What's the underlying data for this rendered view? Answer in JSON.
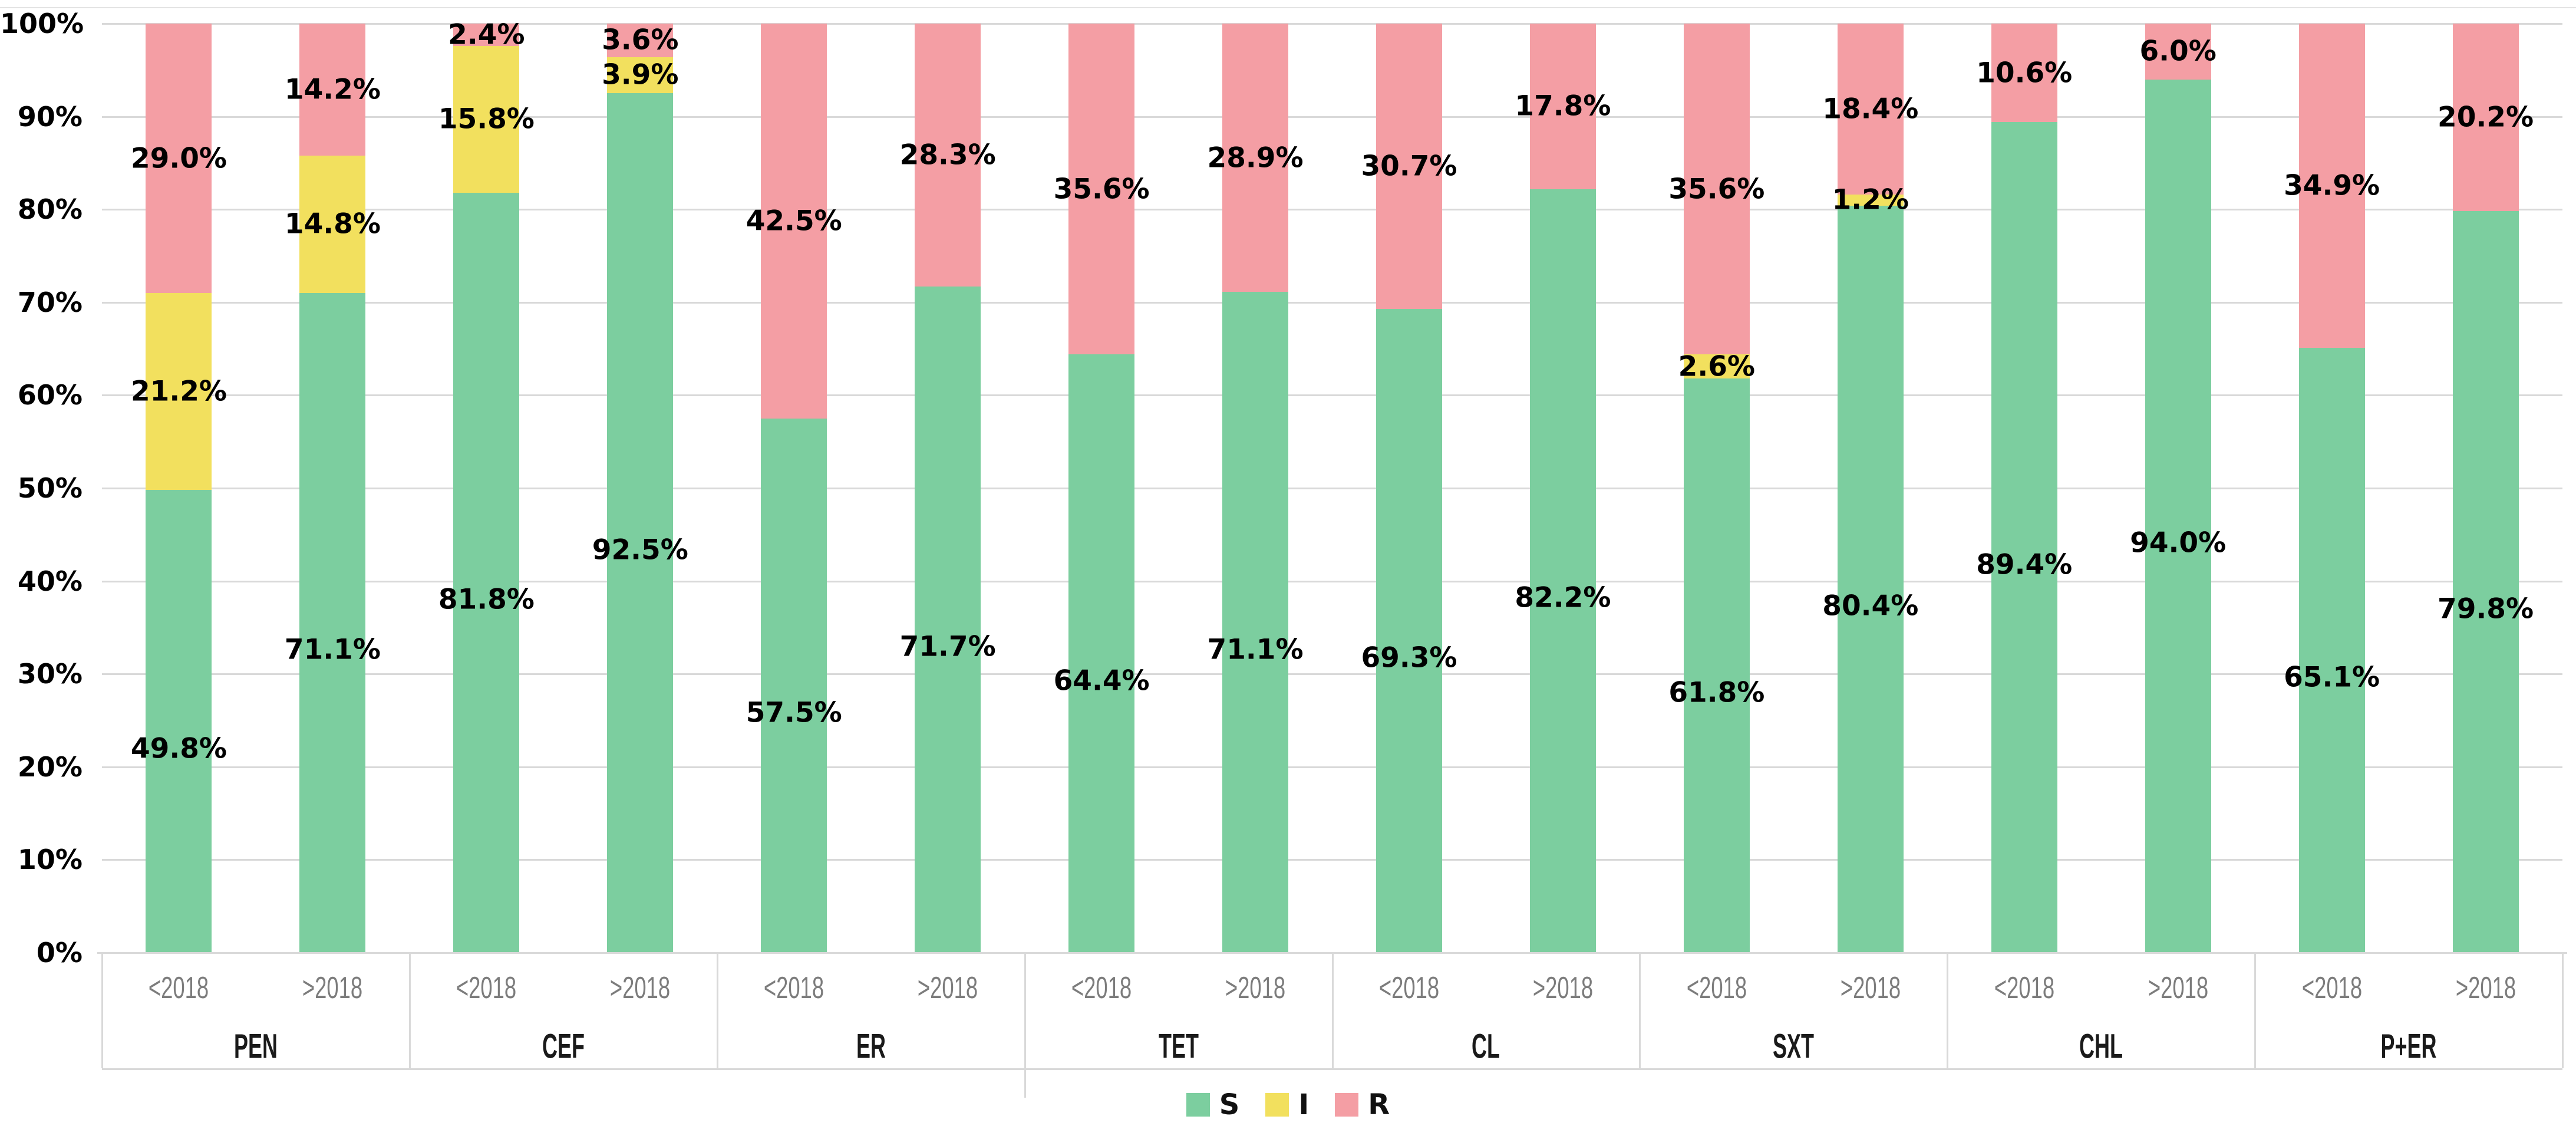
{
  "chart_data": {
    "type": "bar",
    "variant": "100-percent-stacked-column",
    "title": "",
    "categories": [
      "PEN",
      "CEF",
      "ER",
      "TET",
      "CL",
      "SXT",
      "CHL",
      "P+ER"
    ],
    "subcategories": [
      "<2018",
      ">2018"
    ],
    "series": [
      {
        "name": "S",
        "color": "#7cce9f",
        "values": [
          [
            49.8,
            71.1
          ],
          [
            81.8,
            92.5
          ],
          [
            57.5,
            71.7
          ],
          [
            64.4,
            71.1
          ],
          [
            69.3,
            82.2
          ],
          [
            61.8,
            80.4
          ],
          [
            89.4,
            94.0
          ],
          [
            65.1,
            79.8
          ]
        ],
        "labels": [
          [
            "49.8%",
            "71.1%"
          ],
          [
            "81.8%",
            "92.5%"
          ],
          [
            "57.5%",
            "71.7%"
          ],
          [
            "64.4%",
            "71.1%"
          ],
          [
            "69.3%",
            "82.2%"
          ],
          [
            "61.8%",
            "80.4%"
          ],
          [
            "89.4%",
            "94.0%"
          ],
          [
            "65.1%",
            "79.8%"
          ]
        ]
      },
      {
        "name": "I",
        "color": "#f2e05e",
        "values": [
          [
            21.2,
            14.8
          ],
          [
            15.8,
            3.9
          ],
          [
            0,
            0
          ],
          [
            0,
            0
          ],
          [
            0,
            0
          ],
          [
            2.6,
            1.2
          ],
          [
            0,
            0
          ],
          [
            0,
            0
          ]
        ],
        "labels": [
          [
            "21.2%",
            "14.8%"
          ],
          [
            "15.8%",
            "3.9%"
          ],
          [
            "",
            ""
          ],
          [
            "",
            ""
          ],
          [
            "",
            ""
          ],
          [
            "2.6%",
            "1.2%"
          ],
          [
            "",
            ""
          ],
          [
            "",
            ""
          ]
        ]
      },
      {
        "name": "R",
        "color": "#f49ea4",
        "values": [
          [
            29.0,
            14.2
          ],
          [
            2.4,
            3.6
          ],
          [
            42.5,
            28.3
          ],
          [
            35.6,
            28.9
          ],
          [
            30.7,
            17.8
          ],
          [
            35.6,
            18.4
          ],
          [
            10.6,
            6.0
          ],
          [
            34.9,
            20.2
          ]
        ],
        "labels": [
          [
            "29.0%",
            "14.2%"
          ],
          [
            "2.4%",
            "3.6%"
          ],
          [
            "42.5%",
            "28.3%"
          ],
          [
            "35.6%",
            "28.9%"
          ],
          [
            "30.7%",
            "17.8%"
          ],
          [
            "35.6%",
            "18.4%"
          ],
          [
            "10.6%",
            "6.0%"
          ],
          [
            "34.9%",
            "20.2%"
          ]
        ]
      }
    ],
    "y_axis": {
      "ticks": [
        "100%",
        "90%",
        "80%",
        "70%",
        "60%",
        "50%",
        "40%",
        "30%",
        "20%",
        "10%",
        "0%"
      ],
      "range": [
        0,
        100
      ],
      "grid": true
    },
    "legend": {
      "position": "bottom-center",
      "items": [
        {
          "label": "S",
          "color": "#7cce9f"
        },
        {
          "label": "I",
          "color": "#f2e05e"
        },
        {
          "label": "R",
          "color": "#f49ea4"
        }
      ]
    }
  },
  "colors": {
    "background": "#ffffff",
    "grid": "#d9d9d9",
    "data_label": "#000000",
    "period_label": "#7c7c7c",
    "category_label": "#1a1a1a"
  }
}
